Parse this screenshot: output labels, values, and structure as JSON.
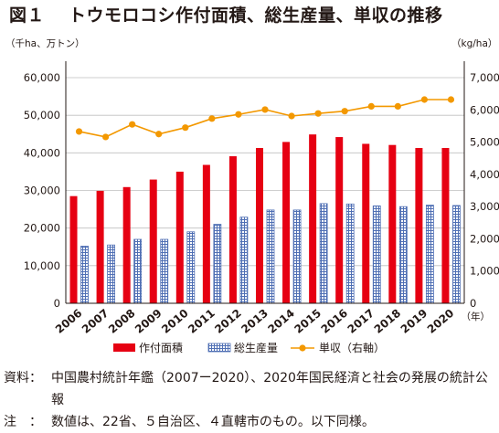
{
  "title": {
    "figure_no": "図１",
    "text": "トウモロコシ作付面積、総生産量、単収の推移"
  },
  "left_unit": "（千ha、万トン）",
  "right_unit": "（kg/ha）",
  "footnotes": [
    {
      "label": "資料：",
      "text": "中国農村統計年鑑（2007ー2020）、2020年国民経済と社会の発展の統計公報"
    },
    {
      "label": "注　：",
      "text": "数値は、22省、５自治区、４直轄市のもの。以下同様。"
    }
  ],
  "chart_data": {
    "type": "bar",
    "categories": [
      "2006",
      "2007",
      "2008",
      "2009",
      "2010",
      "2011",
      "2012",
      "2013",
      "2014",
      "2015",
      "2016",
      "2017",
      "2018",
      "2019",
      "2020"
    ],
    "x_unit": "（年）",
    "series": [
      {
        "name": "作付面積",
        "type": "bar",
        "axis": "left",
        "color": "#e60012",
        "values": [
          28500,
          29900,
          30900,
          32900,
          35000,
          36800,
          39100,
          41300,
          42900,
          44900,
          44200,
          42400,
          42100,
          41300,
          41300
        ]
      },
      {
        "name": "総生産量",
        "type": "bar",
        "axis": "left",
        "color": "#4f6fb4",
        "pattern": "grid",
        "values": [
          15200,
          15500,
          17000,
          17000,
          19000,
          21000,
          22900,
          24800,
          24800,
          26500,
          26400,
          25900,
          25700,
          26100,
          26000
        ]
      },
      {
        "name": "単収（右軸）",
        "type": "line",
        "axis": "right",
        "color": "#f39800",
        "values": [
          5330,
          5160,
          5550,
          5250,
          5450,
          5730,
          5860,
          6010,
          5810,
          5890,
          5960,
          6110,
          6110,
          6320,
          6320
        ]
      }
    ],
    "left_axis": {
      "min": 0,
      "max": 60000,
      "ticks": [
        "0",
        "10,000",
        "20,000",
        "30,000",
        "40,000",
        "50,000",
        "60,000"
      ]
    },
    "right_axis": {
      "min": 0,
      "max": 7000,
      "ticks": [
        "0",
        "1,000",
        "2,000",
        "3,000",
        "4,000",
        "5,000",
        "6,000",
        "7,000"
      ]
    },
    "grid": true,
    "legend_position": "bottom"
  }
}
